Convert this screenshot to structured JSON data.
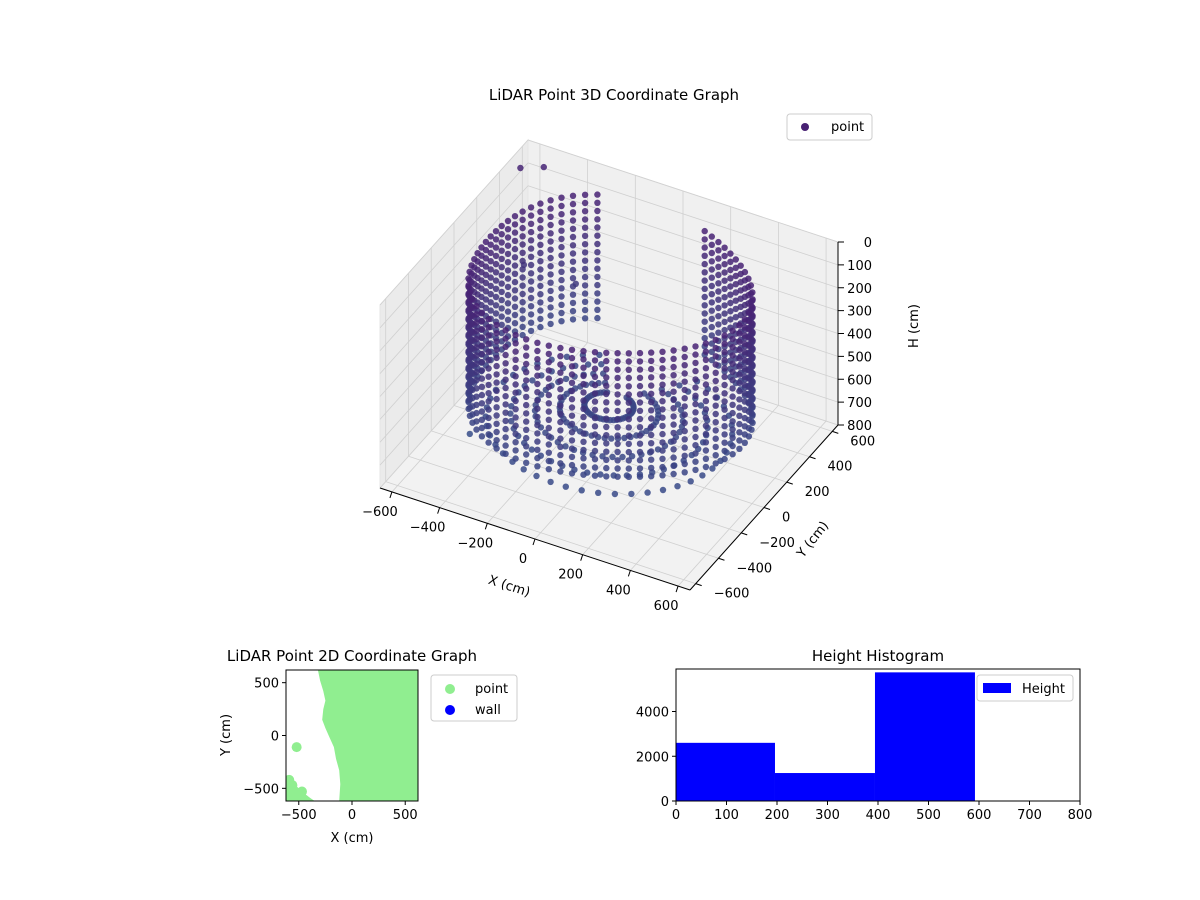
{
  "chart_data": [
    {
      "type": "scatter3d",
      "title": "LiDAR Point 3D Coordinate Graph",
      "xlabel": "X (cm)",
      "ylabel": "Y (cm)",
      "zlabel": "H (cm)",
      "xlim": [
        -650,
        650
      ],
      "ylim": [
        -650,
        650
      ],
      "zlim": [
        0,
        800
      ],
      "z_inverted": true,
      "x_ticks": [
        -600,
        -400,
        -200,
        0,
        200,
        400,
        600
      ],
      "y_ticks": [
        -600,
        -400,
        -200,
        0,
        200,
        400,
        600
      ],
      "z_ticks": [
        0,
        100,
        200,
        300,
        400,
        500,
        600,
        700,
        800
      ],
      "legend": [
        "point"
      ],
      "legend_position": "top-right",
      "grid": true,
      "colormap": "viridis",
      "wall": {
        "radius": 560,
        "angle_start_deg": 120,
        "angle_end_deg": 430,
        "h_min": 20,
        "h_max": 560
      },
      "outliers": [
        {
          "x": -620,
          "y": 520,
          "h": 40
        },
        {
          "x": -560,
          "y": 600,
          "h": 60
        },
        {
          "x": -450,
          "y": -280,
          "h": 700
        },
        {
          "x": -500,
          "y": 300,
          "h": 300
        },
        {
          "x": -330,
          "y": 400,
          "h": 380
        }
      ]
    },
    {
      "type": "scatter",
      "title": "LiDAR Point 2D Coordinate Graph",
      "xlabel": "X (cm)",
      "ylabel": "Y (cm)",
      "xlim": [
        -620,
        620
      ],
      "ylim": [
        -620,
        620
      ],
      "x_ticks": [
        -500,
        0,
        500
      ],
      "y_ticks": [
        -500,
        0,
        500
      ],
      "legend": [
        "point",
        "wall"
      ],
      "legend_position": "outside-right",
      "series": [
        {
          "name": "point",
          "color": "#90ee90"
        },
        {
          "name": "wall",
          "color": "#0000ff"
        }
      ],
      "boundary": [
        [
          -320,
          620
        ],
        [
          -300,
          520
        ],
        [
          -270,
          420
        ],
        [
          -250,
          330
        ],
        [
          -270,
          250
        ],
        [
          -280,
          150
        ],
        [
          -250,
          70
        ],
        [
          -210,
          -20
        ],
        [
          -170,
          -110
        ],
        [
          -150,
          -220
        ],
        [
          -120,
          -330
        ],
        [
          -110,
          -460
        ],
        [
          -120,
          -620
        ]
      ],
      "extra_points": [
        [
          -520,
          -110
        ],
        [
          -560,
          -470
        ],
        [
          -470,
          -530
        ],
        [
          -590,
          -420
        ]
      ]
    },
    {
      "type": "bar",
      "title": "Height Histogram",
      "xlim": [
        0,
        800
      ],
      "ylim": [
        0,
        5900
      ],
      "x_ticks": [
        0,
        100,
        200,
        300,
        400,
        500,
        600,
        700,
        800
      ],
      "y_ticks": [
        0,
        2000,
        4000
      ],
      "legend": [
        "Height"
      ],
      "legend_position": "top-right",
      "color": "#0000ff",
      "bins": [
        {
          "start": 0,
          "end": 196,
          "count": 2600
        },
        {
          "start": 196,
          "end": 394,
          "count": 1250
        },
        {
          "start": 394,
          "end": 592,
          "count": 5750
        }
      ]
    }
  ]
}
